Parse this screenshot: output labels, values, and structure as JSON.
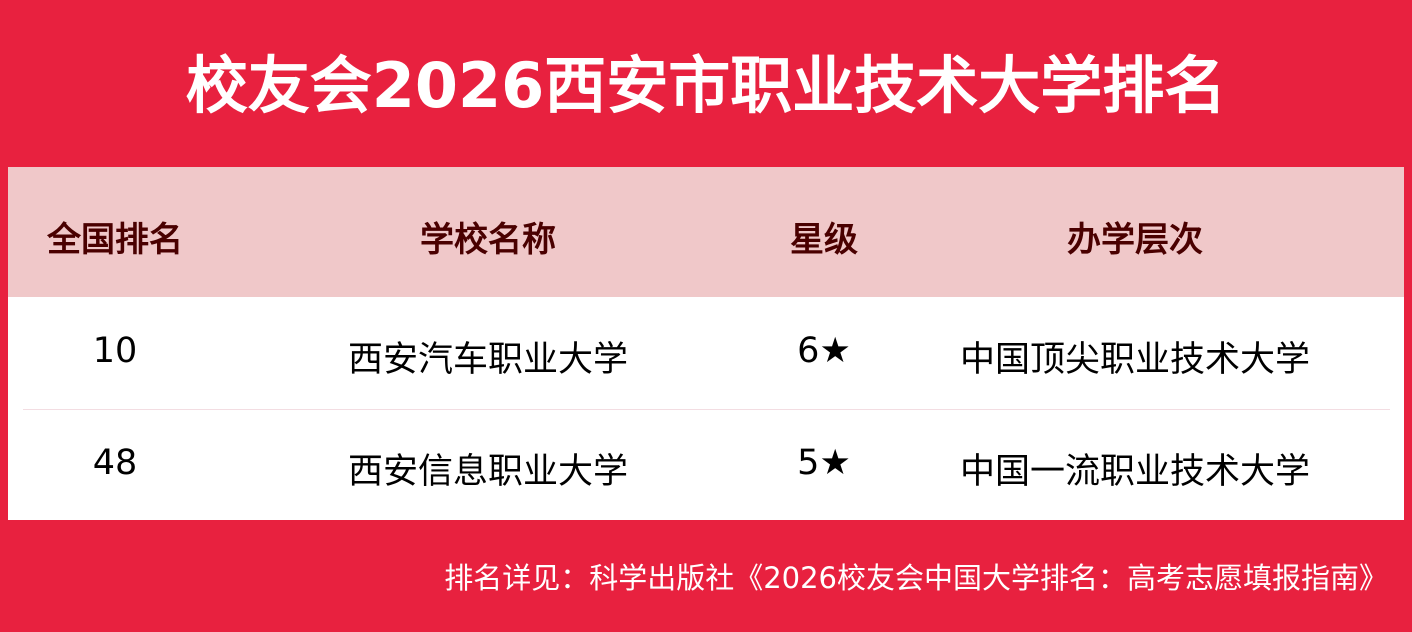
{
  "title": "校友会2026西安市职业技术大学排名",
  "table": {
    "headers": [
      "全国排名",
      "学校名称",
      "星级",
      "办学层次"
    ],
    "rows": [
      [
        "10",
        "西安汽车职业大学",
        "6★",
        "中国顶尖职业技术大学"
      ],
      [
        "48",
        "西安信息职业大学",
        "5★",
        "中国一流职业技术大学"
      ]
    ]
  },
  "footer": "排名详见：科学出版社《2026校友会中国大学排名：高考志愿填报指南》",
  "colors": {
    "background": "#e8213f",
    "header_bg": "#f0c8c9",
    "header_text": "#4a0000"
  }
}
